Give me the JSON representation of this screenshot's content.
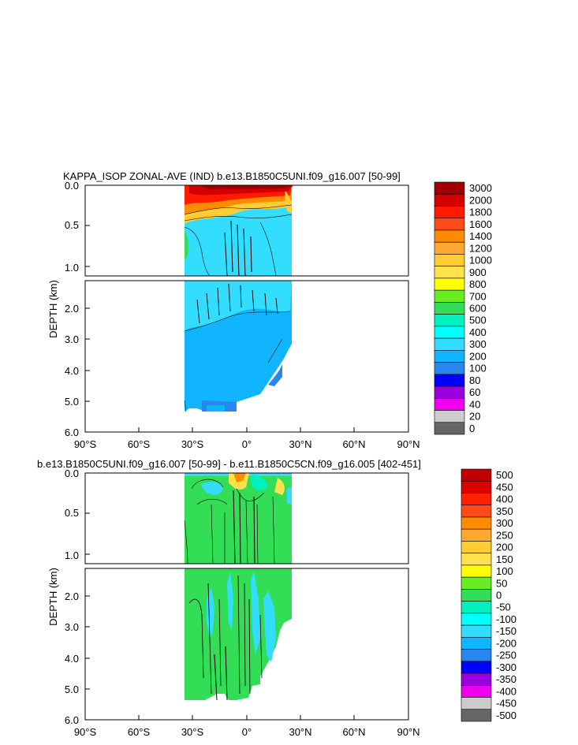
{
  "chart_data": [
    {
      "type": "heatmap",
      "title": "KAPPA_ISOP ZONAL-AVE (IND) b.e13.B1850C5UNI.f09_g16.007 [50-99]",
      "ylabel": "DEPTH (km)",
      "xlabel": "",
      "x_ticks": [
        "90°S",
        "60°S",
        "30°S",
        "0°",
        "30°N",
        "60°N",
        "90°N"
      ],
      "upper_y_ticks": [
        "0.0",
        "0.5",
        "1.0"
      ],
      "lower_y_ticks": [
        "2.0",
        "3.0",
        "4.0",
        "5.0",
        "6.0"
      ],
      "xlim": [
        -90,
        90
      ],
      "ylim_upper": [
        0,
        1.1
      ],
      "ylim_lower": [
        1.1,
        6.0
      ],
      "data_extent_lat": [
        -35,
        26
      ],
      "colorbar": {
        "labels": [
          "3000",
          "2000",
          "1800",
          "1600",
          "1400",
          "1200",
          "1000",
          "900",
          "800",
          "700",
          "600",
          "500",
          "400",
          "300",
          "200",
          "100",
          "80",
          "60",
          "40",
          "20",
          "0"
        ],
        "colors": [
          "#a00000",
          "#d40000",
          "#ff1a00",
          "#ff4a1a",
          "#ff8c00",
          "#ffa733",
          "#ffcc33",
          "#ffe14d",
          "#ffff00",
          "#66ee22",
          "#33dd55",
          "#00f0c0",
          "#00ffff",
          "#33ddff",
          "#11b4ff",
          "#2a86ee",
          "#0000ff",
          "#9a00dd",
          "#ee00ee",
          "#cccccc",
          "#666666"
        ]
      }
    },
    {
      "type": "heatmap",
      "title": "b.e13.B1850C5UNI.f09_g16.007 [50-99] - b.e11.B1850C5CN.f09_g16.005 [402-451]",
      "ylabel": "DEPTH (km)",
      "xlabel": "",
      "x_ticks": [
        "90°S",
        "60°S",
        "30°S",
        "0°",
        "30°N",
        "60°N",
        "90°N"
      ],
      "upper_y_ticks": [
        "0.0",
        "0.5",
        "1.0"
      ],
      "lower_y_ticks": [
        "2.0",
        "3.0",
        "4.0",
        "5.0",
        "6.0"
      ],
      "xlim": [
        -90,
        90
      ],
      "ylim_upper": [
        0,
        1.1
      ],
      "ylim_lower": [
        1.1,
        6.0
      ],
      "data_extent_lat": [
        -35,
        26
      ],
      "colorbar": {
        "labels": [
          "500",
          "450",
          "400",
          "350",
          "300",
          "250",
          "200",
          "150",
          "100",
          "50",
          "0",
          "-50",
          "-100",
          "-150",
          "-200",
          "-250",
          "-300",
          "-350",
          "-400",
          "-450",
          "-500"
        ],
        "colors": [
          "#c00000",
          "#dd0000",
          "#ff2200",
          "#ff4a1a",
          "#ff8c00",
          "#ffa733",
          "#ffcc33",
          "#ffe14d",
          "#ffff00",
          "#66ee22",
          "#33dd55",
          "#00f0c0",
          "#00ffff",
          "#33ddff",
          "#11b4ff",
          "#2a86ee",
          "#0000ff",
          "#9a00dd",
          "#ee00ee",
          "#cccccc",
          "#666666"
        ]
      }
    }
  ]
}
